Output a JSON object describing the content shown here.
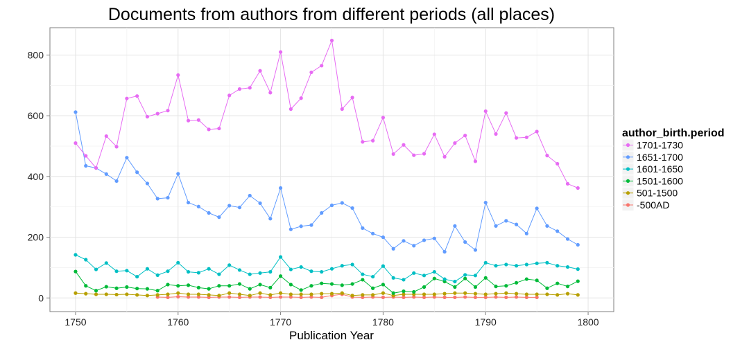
{
  "chart_data": {
    "type": "line",
    "title": "Documents from authors from different periods (all places)",
    "xlabel": "Publication Year",
    "ylabel": "",
    "xlim": [
      1747.5,
      1802.5
    ],
    "ylim": [
      -45,
      890
    ],
    "x_ticks": [
      1750,
      1760,
      1770,
      1780,
      1790,
      1800
    ],
    "y_ticks": [
      0,
      200,
      400,
      600,
      800
    ],
    "grid": true,
    "legend_title": "author_birth.period",
    "legend_position": "right",
    "series": [
      {
        "name": "1701-1730",
        "color": "#e76bf3",
        "x": [
          1750,
          1751,
          1752,
          1753,
          1754,
          1755,
          1756,
          1757,
          1758,
          1759,
          1760,
          1761,
          1762,
          1763,
          1764,
          1765,
          1766,
          1767,
          1768,
          1769,
          1770,
          1771,
          1772,
          1773,
          1774,
          1775,
          1776,
          1777,
          1778,
          1779,
          1780,
          1781,
          1782,
          1783,
          1784,
          1785,
          1786,
          1787,
          1788,
          1789,
          1790,
          1791,
          1792,
          1793,
          1794,
          1795,
          1796,
          1797,
          1798,
          1799
        ],
        "values": [
          510,
          468,
          428,
          533,
          498,
          657,
          665,
          597,
          607,
          617,
          734,
          584,
          586,
          555,
          558,
          667,
          688,
          692,
          748,
          676,
          810,
          622,
          658,
          743,
          765,
          848,
          622,
          660,
          514,
          518,
          594,
          474,
          504,
          470,
          475,
          539,
          465,
          510,
          535,
          450,
          615,
          540,
          609,
          527,
          529,
          548,
          469,
          442,
          376,
          362
        ]
      },
      {
        "name": "1651-1700",
        "color": "#619cff",
        "x": [
          1750,
          1751,
          1752,
          1753,
          1754,
          1755,
          1756,
          1757,
          1758,
          1759,
          1760,
          1761,
          1762,
          1763,
          1764,
          1765,
          1766,
          1767,
          1768,
          1769,
          1770,
          1771,
          1772,
          1773,
          1774,
          1775,
          1776,
          1777,
          1778,
          1779,
          1780,
          1781,
          1782,
          1783,
          1784,
          1785,
          1786,
          1787,
          1788,
          1789,
          1790,
          1791,
          1792,
          1793,
          1794,
          1795,
          1796,
          1797,
          1798,
          1799
        ],
        "values": [
          612,
          435,
          428,
          408,
          385,
          462,
          414,
          377,
          327,
          330,
          409,
          314,
          301,
          280,
          266,
          304,
          298,
          337,
          312,
          261,
          362,
          226,
          236,
          240,
          280,
          305,
          313,
          296,
          230,
          212,
          200,
          162,
          188,
          172,
          190,
          196,
          152,
          237,
          184,
          158,
          314,
          237,
          254,
          242,
          212,
          295,
          237,
          220,
          194,
          175
        ]
      },
      {
        "name": "1601-1650",
        "color": "#00bfc4",
        "x": [
          1750,
          1751,
          1752,
          1753,
          1754,
          1755,
          1756,
          1757,
          1758,
          1759,
          1760,
          1761,
          1762,
          1763,
          1764,
          1765,
          1766,
          1767,
          1768,
          1769,
          1770,
          1771,
          1772,
          1773,
          1774,
          1775,
          1776,
          1777,
          1778,
          1779,
          1780,
          1781,
          1782,
          1783,
          1784,
          1785,
          1786,
          1787,
          1788,
          1789,
          1790,
          1791,
          1792,
          1793,
          1794,
          1795,
          1796,
          1797,
          1798,
          1799
        ],
        "values": [
          142,
          126,
          94,
          115,
          88,
          90,
          70,
          96,
          75,
          88,
          116,
          86,
          83,
          96,
          78,
          108,
          92,
          78,
          82,
          86,
          135,
          94,
          102,
          88,
          86,
          96,
          106,
          110,
          78,
          70,
          105,
          66,
          60,
          82,
          74,
          86,
          62,
          54,
          76,
          74,
          116,
          106,
          110,
          106,
          110,
          114,
          116,
          106,
          102,
          95
        ]
      },
      {
        "name": "1501-1600",
        "color": "#00ba38",
        "x": [
          1750,
          1751,
          1752,
          1753,
          1754,
          1755,
          1756,
          1757,
          1758,
          1759,
          1760,
          1761,
          1762,
          1763,
          1764,
          1765,
          1766,
          1767,
          1768,
          1769,
          1770,
          1771,
          1772,
          1773,
          1774,
          1775,
          1776,
          1777,
          1778,
          1779,
          1780,
          1781,
          1782,
          1783,
          1784,
          1785,
          1786,
          1787,
          1788,
          1789,
          1790,
          1791,
          1792,
          1793,
          1794,
          1795,
          1796,
          1797,
          1798,
          1799
        ],
        "values": [
          87,
          40,
          24,
          37,
          32,
          36,
          31,
          30,
          24,
          44,
          40,
          42,
          34,
          30,
          40,
          40,
          46,
          30,
          44,
          34,
          72,
          44,
          26,
          40,
          48,
          46,
          42,
          46,
          60,
          32,
          44,
          16,
          22,
          20,
          36,
          64,
          54,
          36,
          64,
          36,
          66,
          38,
          40,
          50,
          62,
          58,
          32,
          48,
          38,
          55
        ]
      },
      {
        "name": "501-1500",
        "color": "#b79f00",
        "x": [
          1750,
          1751,
          1752,
          1753,
          1754,
          1755,
          1756,
          1757,
          1758,
          1759,
          1760,
          1761,
          1762,
          1763,
          1764,
          1765,
          1766,
          1767,
          1768,
          1769,
          1770,
          1771,
          1772,
          1773,
          1774,
          1775,
          1776,
          1777,
          1778,
          1779,
          1780,
          1781,
          1782,
          1783,
          1784,
          1785,
          1786,
          1787,
          1788,
          1789,
          1790,
          1791,
          1792,
          1793,
          1794,
          1795,
          1796,
          1797,
          1798,
          1799
        ],
        "values": [
          16,
          14,
          12,
          12,
          11,
          12,
          10,
          8,
          10,
          12,
          16,
          12,
          12,
          10,
          8,
          16,
          12,
          8,
          16,
          10,
          16,
          12,
          12,
          12,
          14,
          14,
          16,
          8,
          10,
          10,
          16,
          8,
          12,
          12,
          12,
          12,
          14,
          16,
          16,
          14,
          12,
          14,
          16,
          14,
          12,
          12,
          12,
          10,
          14,
          10
        ]
      },
      {
        "name": "-500AD",
        "color": "#f8766d",
        "x": [
          1758,
          1759,
          1760,
          1761,
          1762,
          1763,
          1764,
          1765,
          1766,
          1767,
          1768,
          1769,
          1770,
          1771,
          1772,
          1773,
          1774,
          1775,
          1776,
          1777,
          1778,
          1779,
          1780,
          1781,
          1782,
          1783,
          1784,
          1785,
          1786,
          1787,
          1788,
          1789,
          1790,
          1791,
          1792,
          1793,
          1794,
          1795
        ],
        "values": [
          3,
          2,
          4,
          3,
          3,
          2,
          3,
          3,
          2,
          3,
          3,
          2,
          3,
          3,
          2,
          3,
          2,
          8,
          12,
          3,
          2,
          3,
          2,
          3,
          2,
          3,
          2,
          3,
          2,
          2,
          3,
          2,
          2,
          3,
          2,
          3,
          2,
          2
        ]
      }
    ]
  }
}
